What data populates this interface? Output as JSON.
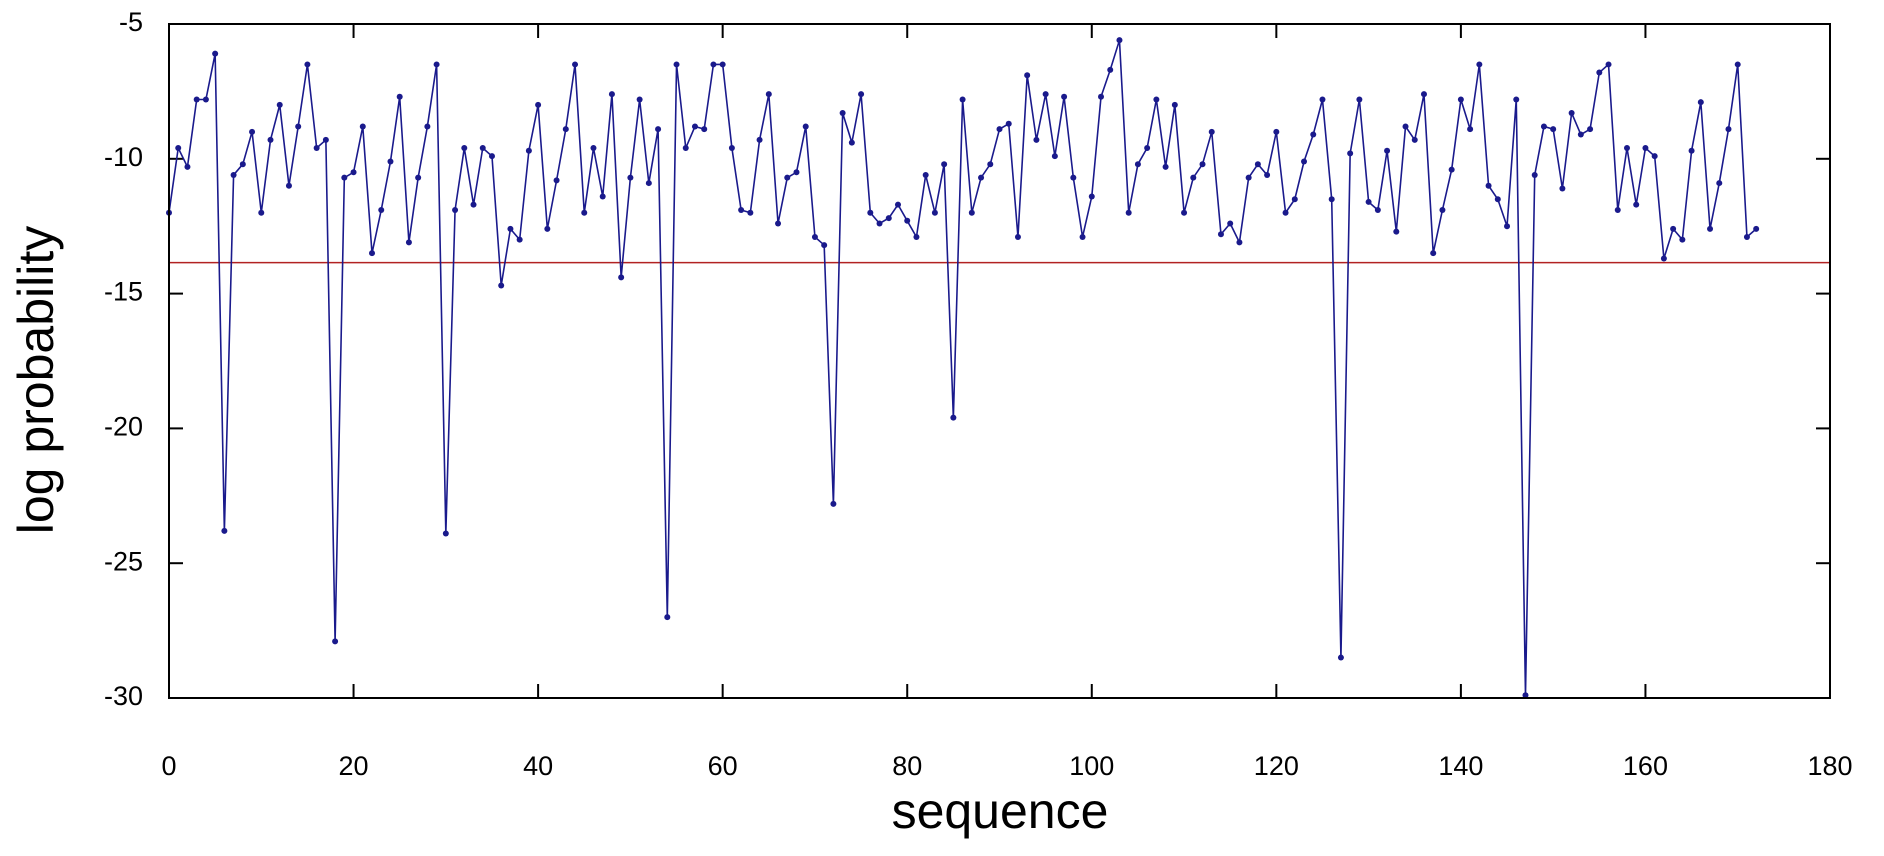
{
  "chart_data": {
    "type": "line",
    "x_label": "sequence",
    "y_label": "log probability",
    "xlim": [
      0,
      180
    ],
    "xticks": [
      0,
      20,
      40,
      60,
      80,
      100,
      120,
      140,
      160,
      180
    ],
    "ylim": [
      -30,
      -5
    ],
    "yticks": [
      -5,
      -10,
      -15,
      -20,
      -25,
      -30
    ],
    "grid": false,
    "markers": true,
    "reference_line": {
      "value": -13.85,
      "color": "#b22222"
    },
    "x": [
      0,
      1,
      2,
      3,
      4,
      5,
      6,
      7,
      8,
      9,
      10,
      11,
      12,
      13,
      14,
      15,
      16,
      17,
      18,
      19,
      20,
      21,
      22,
      23,
      24,
      25,
      26,
      27,
      28,
      29,
      30,
      31,
      32,
      33,
      34,
      35,
      36,
      37,
      38,
      39,
      40,
      41,
      42,
      43,
      44,
      45,
      46,
      47,
      48,
      49,
      50,
      51,
      52,
      53,
      54,
      55,
      56,
      57,
      58,
      59,
      60,
      61,
      62,
      63,
      64,
      65,
      66,
      67,
      68,
      69,
      70,
      71,
      72,
      73,
      74,
      75,
      76,
      77,
      78,
      79,
      80,
      81,
      82,
      83,
      84,
      85,
      86,
      87,
      88,
      89,
      90,
      91,
      92,
      93,
      94,
      95,
      96,
      97,
      98,
      99,
      100,
      101,
      102,
      103,
      104,
      105,
      106,
      107,
      108,
      109,
      110,
      111,
      112,
      113,
      114,
      115,
      116,
      117,
      118,
      119,
      120,
      121,
      122,
      123,
      124,
      125,
      126,
      127,
      128,
      129,
      130,
      131,
      132,
      133,
      134,
      135,
      136,
      137,
      138,
      139,
      140,
      141,
      142,
      143,
      144,
      145,
      146,
      147,
      148,
      149,
      150,
      151,
      152,
      153,
      154,
      155,
      156,
      157,
      158,
      159,
      160,
      161,
      162,
      163,
      164,
      165,
      166,
      167,
      168,
      169,
      170,
      171,
      172
    ],
    "series": [
      {
        "color": "#1a1a8c",
        "values": [
          -12,
          -9.6,
          -10.3,
          -7.8,
          -7.8,
          -6.1,
          -23.8,
          -10.6,
          -10.2,
          -9,
          -12,
          -9.3,
          -8,
          -11,
          -8.8,
          -6.5,
          -9.6,
          -9.3,
          -27.9,
          -10.7,
          -10.5,
          -8.8,
          -13.5,
          -11.9,
          -10.1,
          -7.7,
          -13.1,
          -10.7,
          -8.8,
          -6.5,
          -23.9,
          -11.9,
          -9.6,
          -11.7,
          -9.6,
          -9.9,
          -14.7,
          -12.6,
          -13,
          -9.7,
          -8,
          -12.6,
          -10.8,
          -8.9,
          -6.5,
          -12,
          -9.6,
          -11.4,
          -7.6,
          -14.4,
          -10.7,
          -7.8,
          -10.9,
          -8.9,
          -27,
          -6.5,
          -9.6,
          -8.8,
          -8.9,
          -6.5,
          -6.5,
          -9.6,
          -11.9,
          -12,
          -9.3,
          -7.6,
          -12.4,
          -10.7,
          -10.5,
          -8.8,
          -12.9,
          -13.2,
          -22.8,
          -8.3,
          -9.4,
          -7.6,
          -12,
          -12.4,
          -12.2,
          -11.7,
          -12.3,
          -12.9,
          -10.6,
          -12,
          -10.2,
          -19.6,
          -7.8,
          -12,
          -10.7,
          -10.2,
          -8.9,
          -8.7,
          -12.9,
          -6.9,
          -9.3,
          -7.6,
          -9.9,
          -7.7,
          -10.7,
          -12.9,
          -11.4,
          -7.7,
          -6.7,
          -5.6,
          -12,
          -10.2,
          -9.6,
          -7.8,
          -10.3,
          -8,
          -12,
          -10.7,
          -10.2,
          -9,
          -12.8,
          -12.4,
          -13.1,
          -10.7,
          -10.2,
          -10.6,
          -9,
          -12,
          -11.5,
          -10.1,
          -9.1,
          -7.8,
          -11.5,
          -28.5,
          -9.8,
          -7.8,
          -11.6,
          -11.9,
          -9.7,
          -12.7,
          -8.8,
          -9.3,
          -7.6,
          -13.5,
          -11.9,
          -10.4,
          -7.8,
          -8.9,
          -6.5,
          -11,
          -11.5,
          -12.5,
          -7.8,
          -29.9,
          -10.6,
          -8.8,
          -8.9,
          -11.1,
          -8.3,
          -9.1,
          -8.9,
          -6.8,
          -6.5,
          -11.9,
          -9.6,
          -11.7,
          -9.6,
          -9.9,
          -13.7,
          -12.6,
          -13,
          -9.7,
          -7.9,
          -12.6,
          -10.9,
          -8.9,
          -6.5,
          -12.9,
          -12.6
        ]
      }
    ]
  }
}
